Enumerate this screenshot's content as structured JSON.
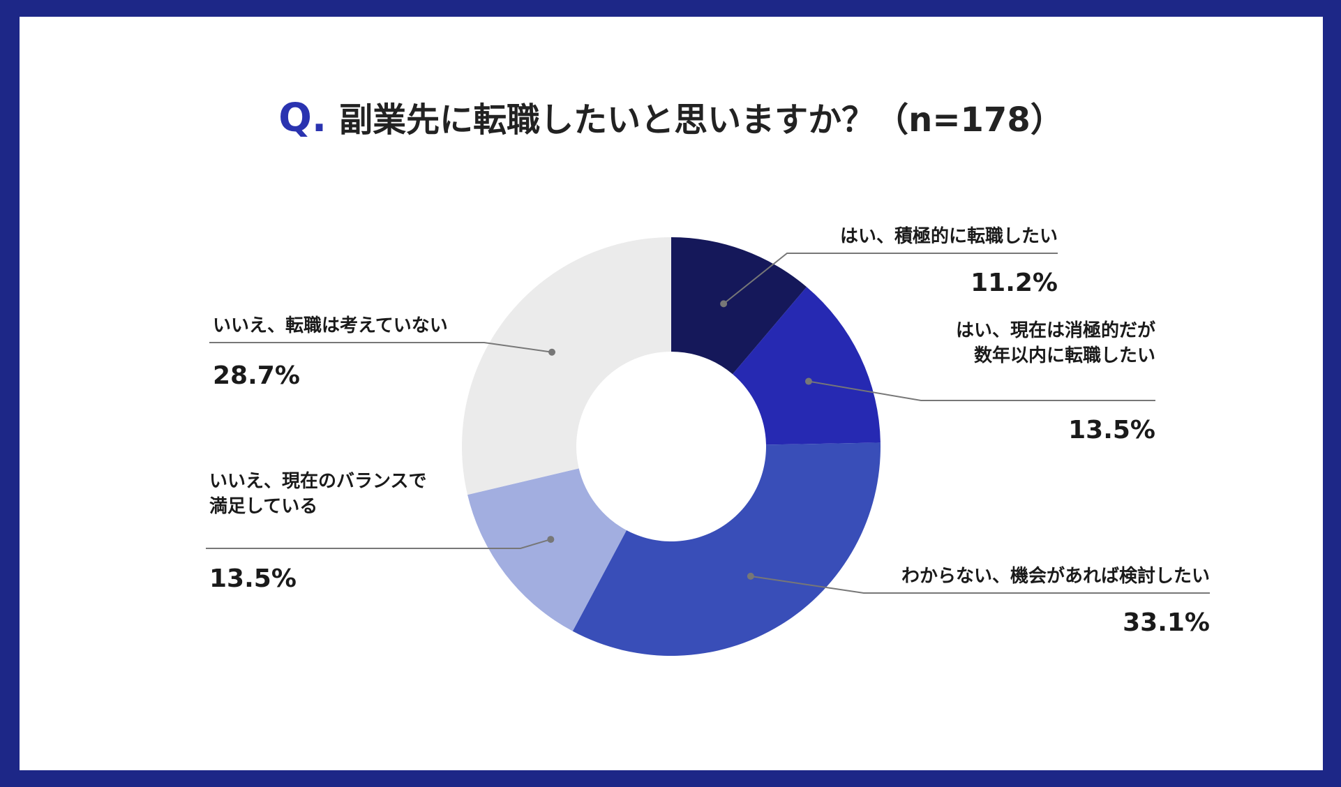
{
  "title": {
    "prefix": "Q.",
    "text": "副業先に転職したいと思いますか？（n=178）"
  },
  "chart_data": {
    "type": "pie",
    "donut": true,
    "n": 178,
    "slices": [
      {
        "label_lines": [
          "はい、積極的に転職したい"
        ],
        "value": 11.2,
        "display": "11.2%",
        "color": "#15185a"
      },
      {
        "label_lines": [
          "はい、現在は消極的だが",
          "数年以内に転職したい"
        ],
        "value": 13.5,
        "display": "13.5%",
        "color": "#2629b2"
      },
      {
        "label_lines": [
          "わからない、機会があれば検討したい"
        ],
        "value": 33.1,
        "display": "33.1%",
        "color": "#394eb8"
      },
      {
        "label_lines": [
          "いいえ、現在のバランスで",
          "満足している"
        ],
        "value": 13.5,
        "display": "13.5%",
        "color": "#a2aee0"
      },
      {
        "label_lines": [
          "いいえ、転職は考えていない"
        ],
        "value": 28.7,
        "display": "28.7%",
        "color": "#ebebeb"
      }
    ]
  }
}
